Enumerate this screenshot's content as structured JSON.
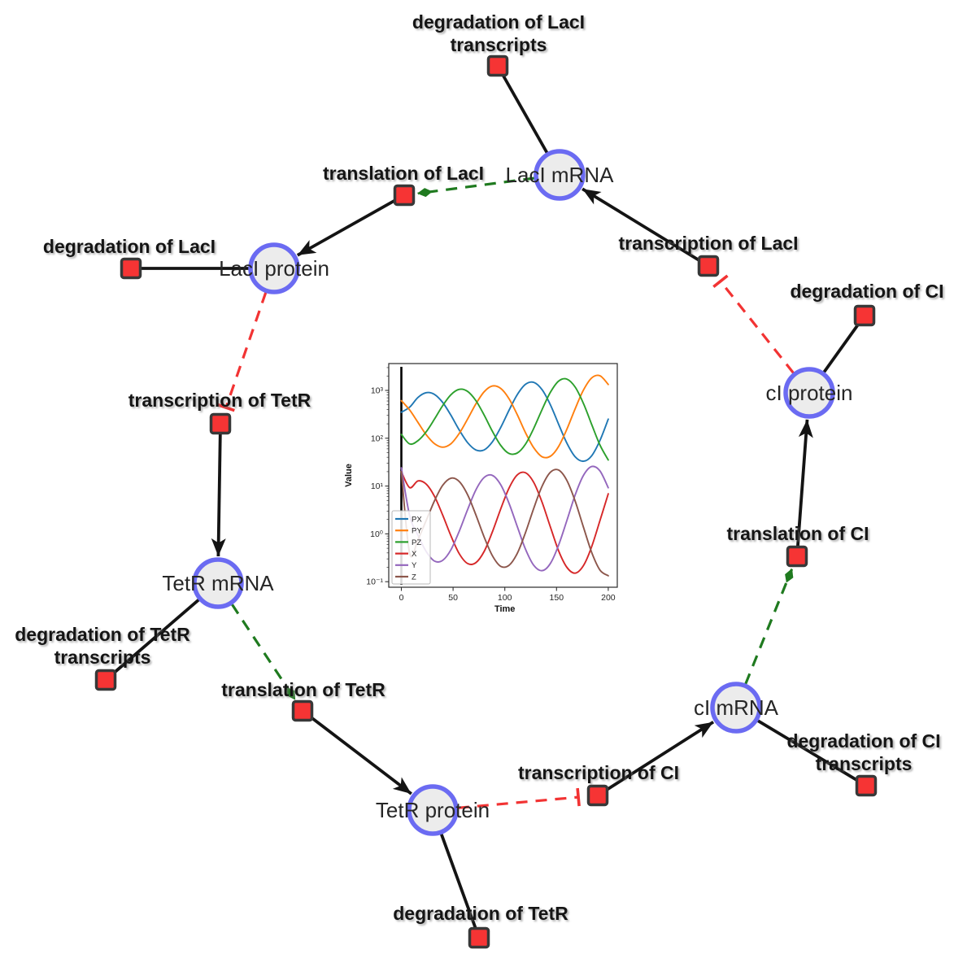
{
  "figure": {
    "background": "#ffffff"
  },
  "colors": {
    "species_fill": "#ececec",
    "species_stroke": "#6b6bf2",
    "reaction_fill": "#f63434",
    "reaction_stroke": "#383838",
    "edge_black": "#141414",
    "edge_activation": "#1f7a1f",
    "edge_inhibition": "#f23333"
  },
  "network": {
    "species": [
      {
        "id": "laci-mrna",
        "label": "LacI mRNA"
      },
      {
        "id": "laci-protein",
        "label": "LacI protein"
      },
      {
        "id": "tetr-mrna",
        "label": "TetR mRNA"
      },
      {
        "id": "tetr-protein",
        "label": "TetR protein"
      },
      {
        "id": "ci-mrna",
        "label": "cI mRNA"
      },
      {
        "id": "ci-protein",
        "label": "cI protein"
      }
    ],
    "reactions": [
      {
        "id": "deg-laci-transcripts",
        "lines": [
          "degradation of LacI",
          "transcripts"
        ]
      },
      {
        "id": "translation-laci",
        "lines": [
          "translation of LacI"
        ]
      },
      {
        "id": "deg-laci",
        "lines": [
          "degradation of LacI"
        ]
      },
      {
        "id": "transcription-laci",
        "lines": [
          "transcription of LacI"
        ]
      },
      {
        "id": "deg-ci",
        "lines": [
          "degradation of CI"
        ]
      },
      {
        "id": "transcription-tetr",
        "lines": [
          "transcription of TetR"
        ]
      },
      {
        "id": "translation-ci",
        "lines": [
          "translation of CI"
        ]
      },
      {
        "id": "deg-tetr-transcripts",
        "lines": [
          "degradation of TetR",
          "transcripts"
        ]
      },
      {
        "id": "translation-tetr",
        "lines": [
          "translation of TetR"
        ]
      },
      {
        "id": "transcription-ci",
        "lines": [
          "transcription of CI"
        ]
      },
      {
        "id": "deg-ci-transcripts",
        "lines": [
          "degradation of CI",
          "transcripts"
        ]
      },
      {
        "id": "deg-tetr",
        "lines": [
          "degradation of TetR"
        ]
      }
    ]
  },
  "chart_data": {
    "type": "line",
    "xlabel": "Time",
    "ylabel": "Value",
    "y_scale": "log10",
    "x_ticks": [
      0,
      50,
      100,
      150,
      200
    ],
    "y_tick_log10": [
      -1,
      0,
      1,
      2,
      3
    ],
    "y_tick_labels": [
      "10⁻¹",
      "10⁰",
      "10¹",
      "10²",
      "10³"
    ],
    "xlim": [
      -12,
      209
    ],
    "ylim_log10": [
      -1.12,
      3.55
    ],
    "legend_position": "lower left",
    "vline_x": 0,
    "x": [
      0,
      8,
      16,
      24,
      32,
      40,
      48,
      56,
      64,
      72,
      80,
      88,
      96,
      104,
      112,
      120,
      128,
      136,
      144,
      152,
      160,
      168,
      176,
      184,
      192,
      200
    ],
    "series": [
      {
        "name": "PX",
        "color": "#1f77b4",
        "values": [
          350,
          446,
          711,
          895,
          824,
          557,
          299,
          148,
          81,
          57,
          57,
          84,
          167,
          381,
          815,
          1339,
          1472,
          1037,
          502,
          197,
          79,
          41,
          33,
          43,
          90,
          251
        ]
      },
      {
        "name": "PY",
        "color": "#ff7f0e",
        "values": [
          610,
          389,
          215,
          119,
          77,
          65,
          77,
          126,
          251,
          521,
          935,
          1236,
          1105,
          674,
          311,
          131,
          63,
          41,
          42,
          67,
          154,
          413,
          1017,
          1822,
          2024,
          1331
        ]
      },
      {
        "name": "PZ",
        "color": "#2ca02c",
        "values": [
          120,
          76,
          89,
          136,
          251,
          482,
          815,
          1052,
          954,
          612,
          305,
          140,
          71,
          48,
          49,
          75,
          161,
          397,
          910,
          1562,
          1725,
          1175,
          533,
          194,
          72,
          35
        ]
      },
      {
        "name": "X",
        "color": "#d62728",
        "values": [
          20,
          9.3,
          12.8,
          11,
          6.1,
          2.45,
          0.9,
          0.385,
          0.24,
          0.25,
          0.43,
          1.1,
          3.3,
          9,
          17.1,
          19,
          11.9,
          4.6,
          1.4,
          0.445,
          0.2,
          0.151,
          0.217,
          0.54,
          1.9,
          6.9
        ]
      },
      {
        "name": "Y",
        "color": "#9467bd",
        "values": [
          24,
          2.4,
          0.94,
          0.43,
          0.27,
          0.28,
          0.47,
          1.14,
          3.2,
          8.3,
          15.1,
          16.7,
          10.7,
          4.4,
          1.43,
          0.48,
          0.22,
          0.17,
          0.24,
          0.58,
          1.9,
          6.5,
          16.7,
          25.6,
          20.7,
          9.2
        ]
      },
      {
        "name": "Z",
        "color": "#8c564b",
        "values": [
          20,
          0.39,
          0.76,
          1.9,
          4.9,
          10.4,
          14.6,
          12.4,
          6.6,
          2.5,
          0.86,
          0.35,
          0.21,
          0.22,
          0.39,
          1.06,
          3.44,
          9.9,
          19.4,
          21.6,
          13.1,
          4.85,
          1.38,
          0.41,
          0.175,
          0.133
        ]
      }
    ]
  }
}
